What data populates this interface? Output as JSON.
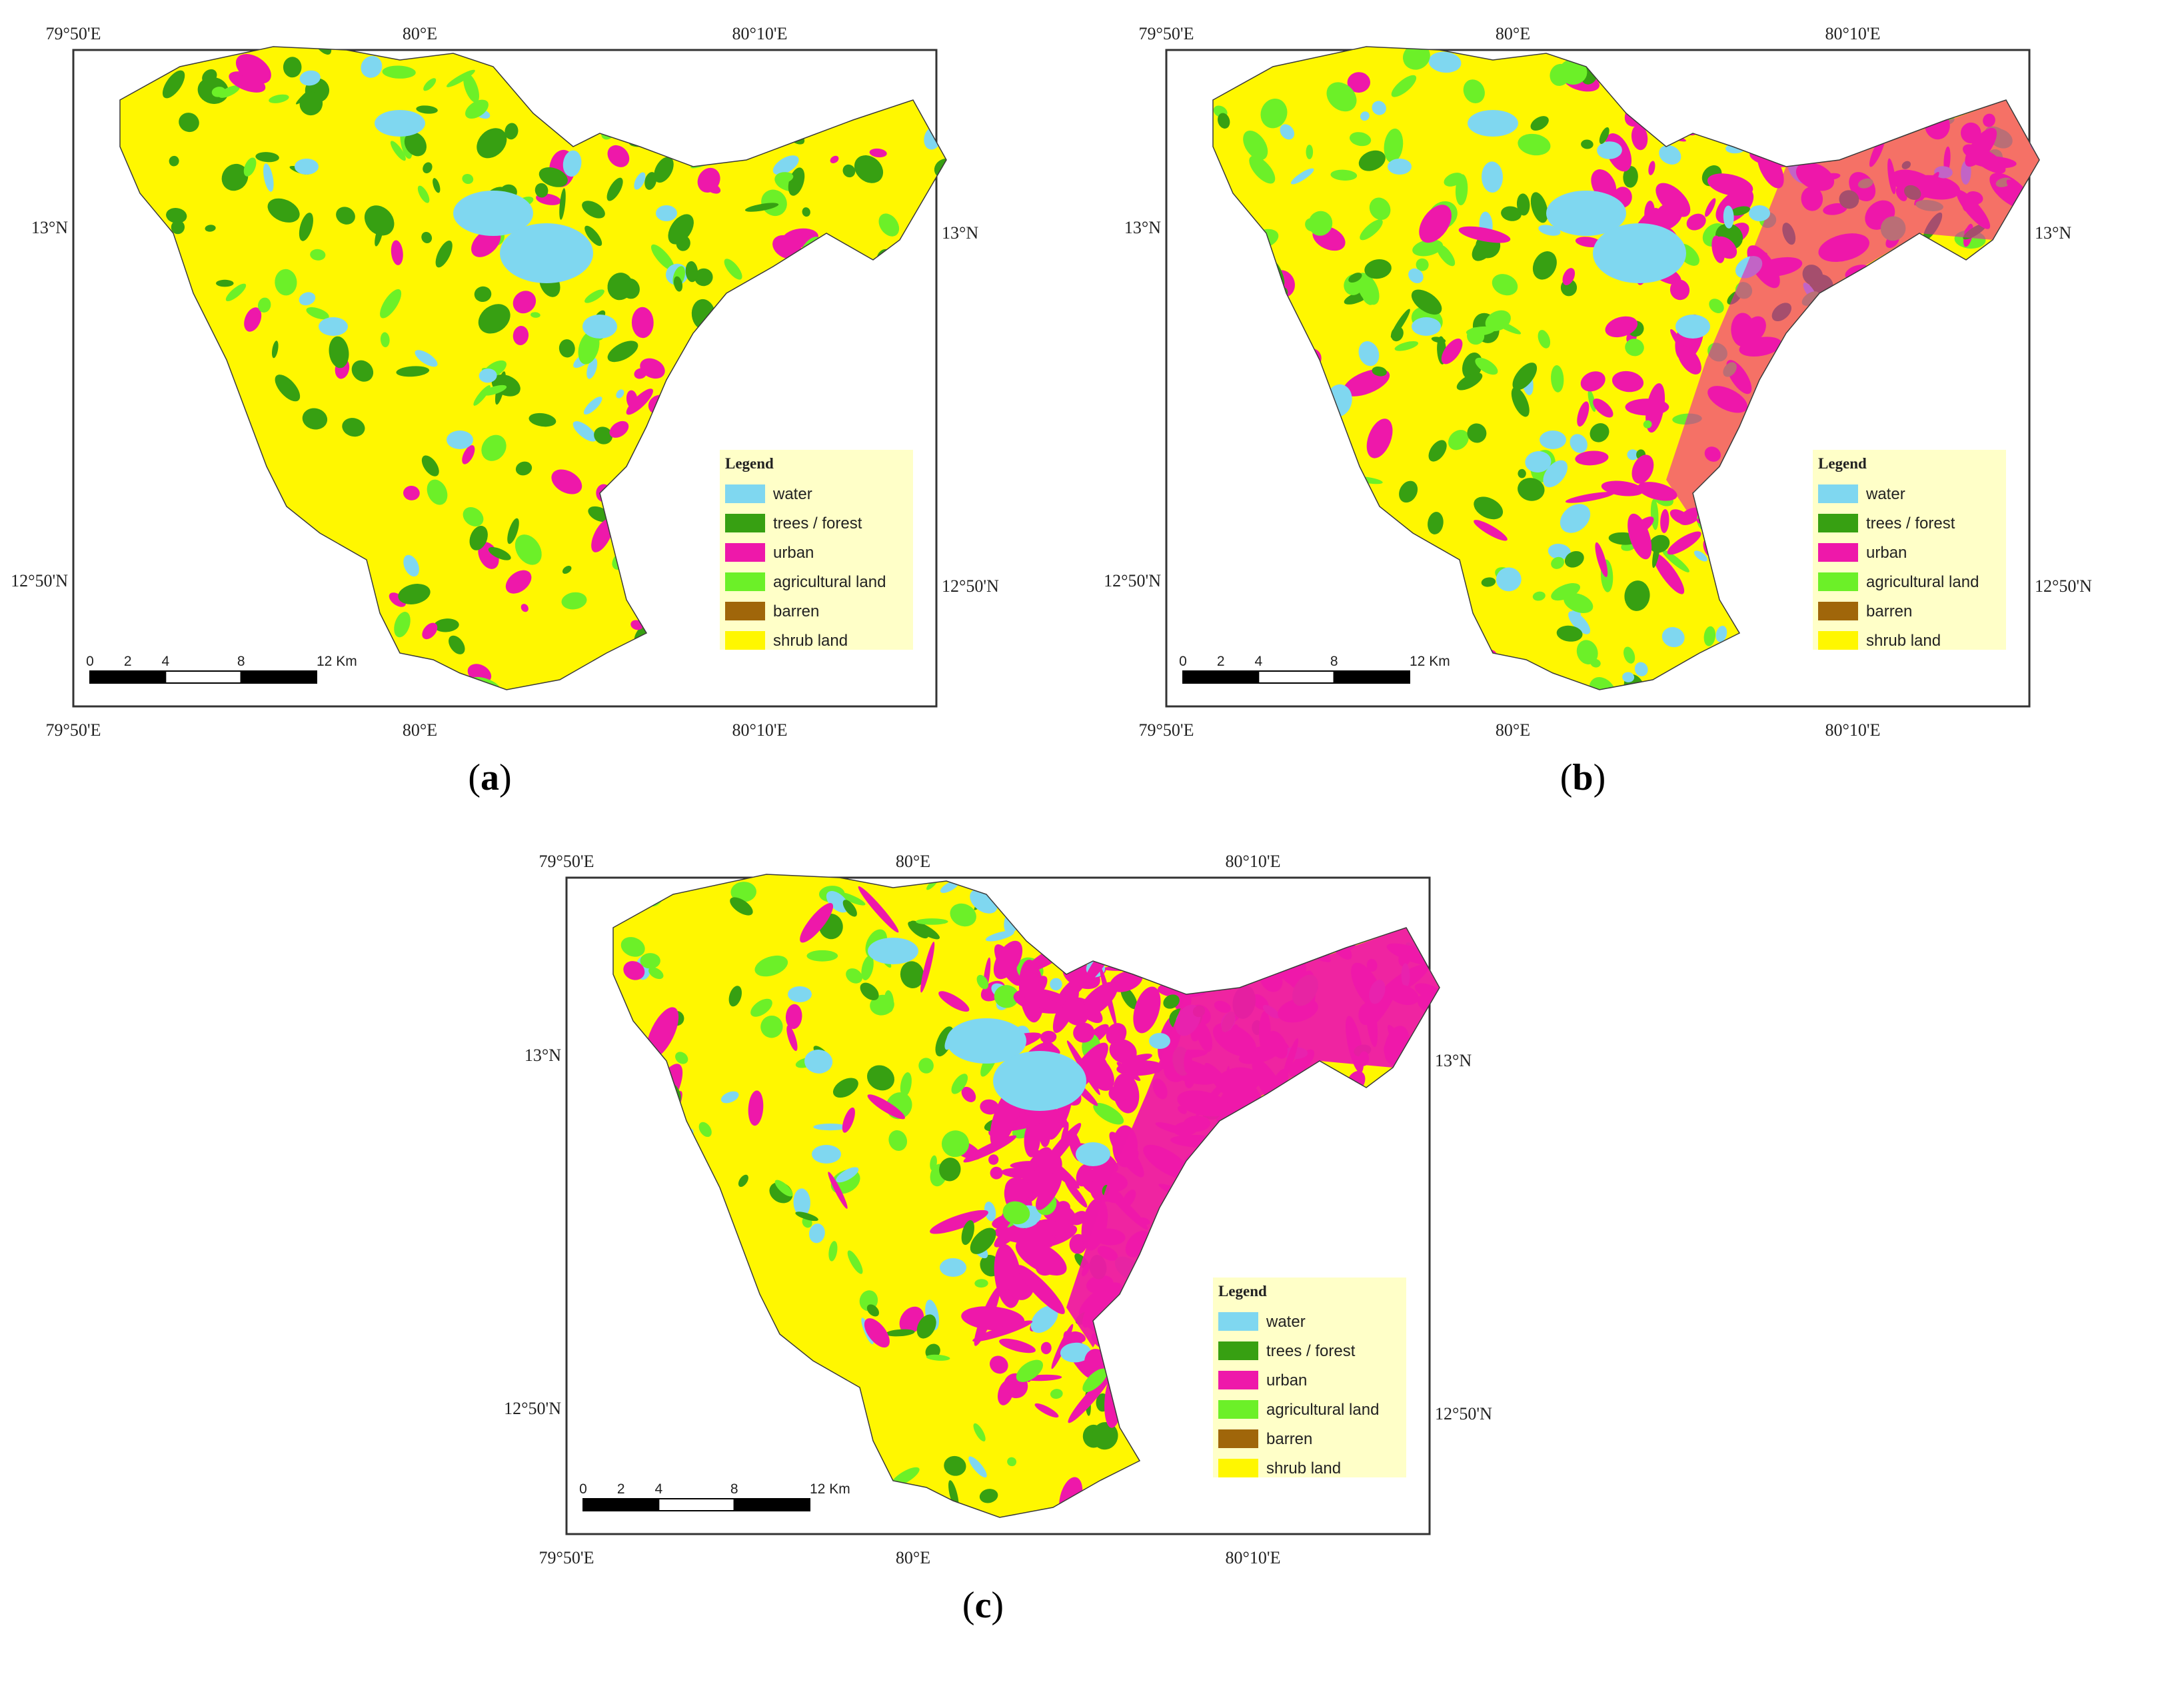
{
  "colors": {
    "water": "#7fd7f0",
    "trees_forest": "#37a012",
    "urban": "#ee18aa",
    "agricultural_land": "#6cf028",
    "barren": "#a0660a",
    "shrub_land": "#fff700"
  },
  "legend": {
    "title": "Legend",
    "items": [
      {
        "label": "water",
        "color": "#7fd7f0"
      },
      {
        "label": "trees / forest",
        "color": "#37a012"
      },
      {
        "label": "urban",
        "color": "#ee18aa"
      },
      {
        "label": "agricultural land",
        "color": "#6cf028"
      },
      {
        "label": "barren",
        "color": "#a0660a"
      },
      {
        "label": "shrub land",
        "color": "#fff700"
      }
    ]
  },
  "axis": {
    "lon_top": [
      "79°50'E",
      "80°E",
      "80°10'E"
    ],
    "lon_bottom": [
      "79°50'E",
      "80°E",
      "80°10'E"
    ],
    "lat_left": [
      "13°N",
      "12°50'N"
    ],
    "lat_right": [
      "13°N",
      "12°50'N"
    ]
  },
  "scalebar": {
    "labels": [
      "0",
      "2",
      "4",
      "8",
      "12 Km"
    ]
  },
  "panels": [
    {
      "id": "a",
      "caption_open": "(",
      "caption_letter": "a",
      "caption_close": ")",
      "class_mix": {
        "shrub_land": 0.55,
        "trees_forest": 0.2,
        "agricultural_land": 0.12,
        "urban": 0.08,
        "water": 0.05
      }
    },
    {
      "id": "b",
      "caption_open": "(",
      "caption_letter": "b",
      "caption_close": ")",
      "class_mix": {
        "shrub_land": 0.38,
        "trees_forest": 0.15,
        "agricultural_land": 0.17,
        "urban": 0.22,
        "water": 0.08
      }
    },
    {
      "id": "c",
      "caption_open": "(",
      "caption_letter": "c",
      "caption_close": ")",
      "class_mix": {
        "shrub_land": 0.25,
        "trees_forest": 0.1,
        "agricultural_land": 0.13,
        "urban": 0.45,
        "water": 0.07
      }
    }
  ]
}
